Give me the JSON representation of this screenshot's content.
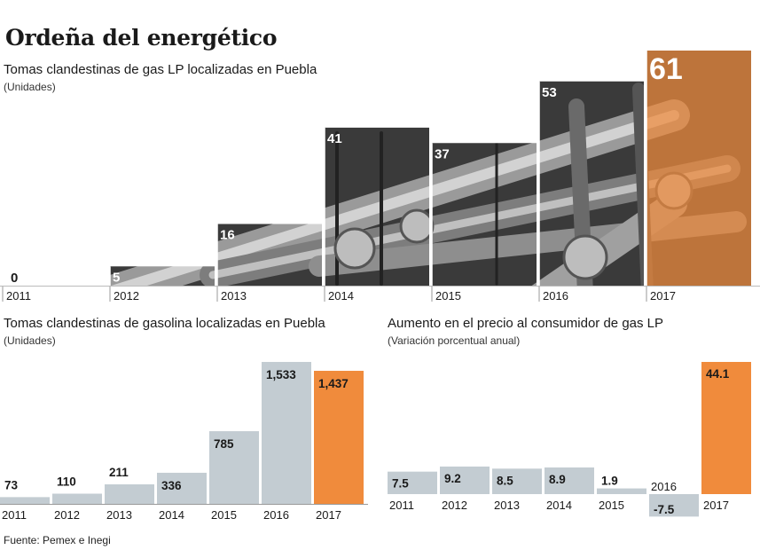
{
  "title": "Ordeña del energético",
  "source": "Fuente: Pemex e Inegi",
  "colors": {
    "highlight": "#f08b3c",
    "bar": "#c3ccd2",
    "photo_dark": "#2b2b2b",
    "photo_mid": "#5a5a5a"
  },
  "chart_data": [
    {
      "type": "bar",
      "title": "Tomas clandestinas de gas LP localizadas en Puebla",
      "subtitle": "(Unidades)",
      "categories": [
        "2011",
        "2012",
        "2013",
        "2014",
        "2015",
        "2016",
        "2017"
      ],
      "values": [
        0,
        5,
        16,
        41,
        37,
        53,
        61
      ],
      "value_labels": [
        "0",
        "5",
        "16",
        "41",
        "37",
        "53",
        "61"
      ],
      "ylim": [
        0,
        61
      ],
      "highlight": "2017"
    },
    {
      "type": "bar",
      "title": "Tomas clandestinas de gasolina localizadas en Puebla",
      "subtitle": "(Unidades)",
      "categories": [
        "2011",
        "2012",
        "2013",
        "2014",
        "2015",
        "2016",
        "2017"
      ],
      "values": [
        73,
        110,
        211,
        336,
        785,
        1533,
        1437
      ],
      "value_labels": [
        "73",
        "110",
        "211",
        "336",
        "785",
        "1,533",
        "1,437"
      ],
      "ylim": [
        0,
        1533
      ],
      "highlight": "2017"
    },
    {
      "type": "bar",
      "title": "Aumento en el precio al consumidor de gas LP",
      "subtitle": "(Variación porcentual anual)",
      "categories": [
        "2011",
        "2012",
        "2013",
        "2014",
        "2015",
        "2016",
        "2017"
      ],
      "values": [
        7.5,
        9.2,
        8.5,
        8.9,
        1.9,
        -7.5,
        44.1
      ],
      "value_labels": [
        "7.5",
        "9.2",
        "8.5",
        "8.9",
        "1.9",
        "-7.5",
        "44.1"
      ],
      "ylim": [
        -7.5,
        44.1
      ],
      "highlight": "2017"
    }
  ]
}
